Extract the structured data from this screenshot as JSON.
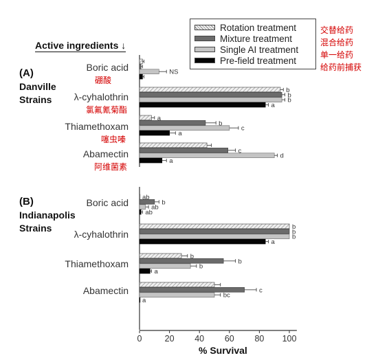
{
  "legend": {
    "items": [
      {
        "name": "Rotation treatment",
        "cn": "交替给药",
        "style": "hatch"
      },
      {
        "name": "Mixture treatment",
        "cn": "混合给药",
        "style": "dark"
      },
      {
        "name": "Single AI treatment",
        "cn": "单一给药",
        "style": "light"
      },
      {
        "name": "Pre-field treatment",
        "cn": "给药前捕获",
        "style": "black"
      }
    ]
  },
  "header": {
    "active_ingredients": "Active ingredients ↓"
  },
  "panels": [
    {
      "tag": "(A)",
      "strain_line1": "Danville",
      "strain_line2": "Strains"
    },
    {
      "tag": "(B)",
      "strain_line1": "Indianapolis",
      "strain_line2": "Strains"
    }
  ],
  "ingredient_cn": {
    "boric_acid": "硼酸",
    "cyhalothrin": "氯氟氰菊酯",
    "thiamethoxam": "噻虫嗪",
    "abamectin": "阿维菌素"
  },
  "chart_data": [
    {
      "type": "bar",
      "orientation": "horizontal",
      "panel": "(A) Danville Strains",
      "categories": [
        "Boric acid",
        "λ-cyhalothrin",
        "Thiamethoxam",
        "Abamectin"
      ],
      "series": [
        {
          "name": "Rotation treatment",
          "values": [
            2,
            94,
            8,
            45
          ],
          "errors": [
            1,
            2,
            2,
            3
          ],
          "letters": [
            "",
            "b",
            "a",
            ""
          ]
        },
        {
          "name": "Mixture treatment",
          "values": [
            1,
            95,
            44,
            59
          ],
          "errors": [
            1,
            2,
            7,
            5
          ],
          "letters": [
            "",
            "b",
            "b",
            "c"
          ]
        },
        {
          "name": "Single AI treatment",
          "values": [
            13,
            95,
            60,
            90
          ],
          "errors": [
            5,
            2,
            6,
            2
          ],
          "letters": [
            "NS",
            "b",
            "c",
            "d"
          ]
        },
        {
          "name": "Pre-field treatment",
          "values": [
            2,
            84,
            20,
            15
          ],
          "errors": [
            1,
            2,
            4,
            3
          ],
          "letters": [
            "",
            "a",
            "a",
            "a"
          ]
        }
      ],
      "xlabel": "% Survival",
      "xlim": [
        0,
        105
      ]
    },
    {
      "type": "bar",
      "orientation": "horizontal",
      "panel": "(B) Indianapolis Strains",
      "categories": [
        "Boric acid",
        "λ-cyhalothrin",
        "Thiamethoxam",
        "Abamectin"
      ],
      "series": [
        {
          "name": "Rotation treatment",
          "values": [
            0,
            100,
            28,
            50
          ],
          "errors": [
            0,
            0,
            4,
            4
          ],
          "letters": [
            "ab",
            "b",
            "b",
            ""
          ]
        },
        {
          "name": "Mixture treatment",
          "values": [
            10,
            100,
            56,
            70
          ],
          "errors": [
            3,
            0,
            8,
            8
          ],
          "letters": [
            "b",
            "b",
            "b",
            "c"
          ]
        },
        {
          "name": "Single AI treatment",
          "values": [
            4,
            100,
            34,
            50
          ],
          "errors": [
            2,
            0,
            4,
            4
          ],
          "letters": [
            "ab",
            "b",
            "b",
            "bc"
          ]
        },
        {
          "name": "Pre-field treatment",
          "values": [
            1,
            84,
            7,
            0
          ],
          "errors": [
            1,
            2,
            1,
            0
          ],
          "letters": [
            "ab",
            "a",
            "a",
            "a"
          ]
        }
      ],
      "xticks": [
        0,
        20,
        40,
        60,
        80,
        100
      ],
      "xlabel": "% Survival",
      "xlim": [
        0,
        105
      ]
    }
  ],
  "colors": {
    "dark": "#6b6b6b",
    "light": "#c4c4c4",
    "black": "#050505",
    "hatch_bg": "#f0f0f0",
    "hatch_line": "#8a8a8a",
    "cn_text": "#d40000"
  }
}
